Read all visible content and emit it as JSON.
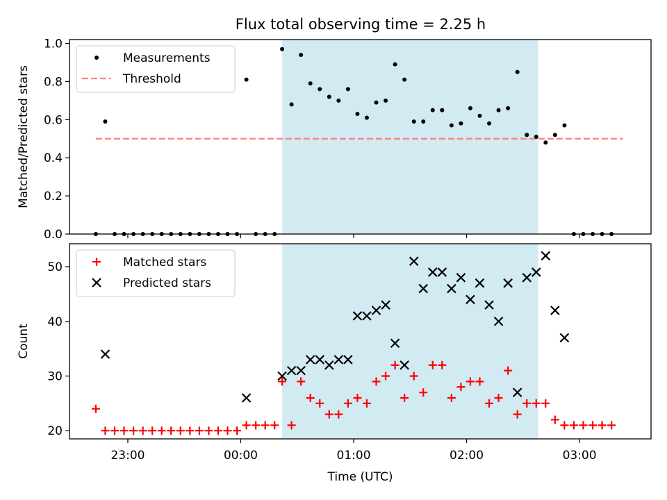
{
  "title": "Flux total observing time = 2.25 h",
  "chart_data": [
    {
      "type": "scatter",
      "panel": "top",
      "title": "Flux total observing time = 2.25 h",
      "xlabel": "",
      "ylabel": "Matched/Predicted stars",
      "xlim": [
        "22:29",
        "03:38"
      ],
      "ylim": [
        0,
        1.02
      ],
      "yticks": [
        0.0,
        0.2,
        0.4,
        0.6,
        0.8,
        1.0
      ],
      "ytick_labels": [
        "0.0",
        "0.2",
        "0.4",
        "0.6",
        "0.8",
        "1.0"
      ],
      "xticks": [
        "23:00",
        "00:00",
        "01:00",
        "02:00",
        "03:00"
      ],
      "shaded_interval": {
        "start": "00:22",
        "end": "02:38",
        "color": "#add8e6"
      },
      "legend": {
        "position": "top-left",
        "entries": [
          "Measurements",
          "Threshold"
        ]
      },
      "threshold": {
        "name": "Threshold",
        "value": 0.5,
        "x_range": [
          "22:43",
          "03:23"
        ],
        "color": "#ff7f7f",
        "style": "dashed"
      },
      "series": [
        {
          "name": "Measurements",
          "color": "#000000",
          "marker": "dot",
          "points": [
            [
              "22:43",
              0
            ],
            [
              "22:48",
              0.59
            ],
            [
              "22:53",
              0
            ],
            [
              "22:58",
              0
            ],
            [
              "23:03",
              0
            ],
            [
              "23:08",
              0
            ],
            [
              "23:13",
              0
            ],
            [
              "23:18",
              0
            ],
            [
              "23:23",
              0
            ],
            [
              "23:28",
              0
            ],
            [
              "23:33",
              0
            ],
            [
              "23:38",
              0
            ],
            [
              "23:43",
              0
            ],
            [
              "23:48",
              0
            ],
            [
              "23:53",
              0
            ],
            [
              "23:58",
              0
            ],
            [
              "00:03",
              0.81
            ],
            [
              "00:08",
              0
            ],
            [
              "00:13",
              0
            ],
            [
              "00:18",
              0
            ],
            [
              "00:22",
              0.97
            ],
            [
              "00:27",
              0.68
            ],
            [
              "00:32",
              0.94
            ],
            [
              "00:37",
              0.79
            ],
            [
              "00:42",
              0.76
            ],
            [
              "00:47",
              0.72
            ],
            [
              "00:52",
              0.7
            ],
            [
              "00:57",
              0.76
            ],
            [
              "01:02",
              0.63
            ],
            [
              "01:07",
              0.61
            ],
            [
              "01:12",
              0.69
            ],
            [
              "01:17",
              0.7
            ],
            [
              "01:22",
              0.89
            ],
            [
              "01:27",
              0.81
            ],
            [
              "01:32",
              0.59
            ],
            [
              "01:37",
              0.59
            ],
            [
              "01:42",
              0.65
            ],
            [
              "01:47",
              0.65
            ],
            [
              "01:52",
              0.57
            ],
            [
              "01:57",
              0.58
            ],
            [
              "02:02",
              0.66
            ],
            [
              "02:07",
              0.62
            ],
            [
              "02:12",
              0.58
            ],
            [
              "02:17",
              0.65
            ],
            [
              "02:22",
              0.66
            ],
            [
              "02:27",
              0.85
            ],
            [
              "02:32",
              0.52
            ],
            [
              "02:37",
              0.51
            ],
            [
              "02:42",
              0.48
            ],
            [
              "02:47",
              0.52
            ],
            [
              "02:52",
              0.57
            ],
            [
              "02:57",
              0
            ],
            [
              "03:02",
              0
            ],
            [
              "03:07",
              0
            ],
            [
              "03:12",
              0
            ],
            [
              "03:17",
              0
            ]
          ]
        }
      ]
    },
    {
      "type": "scatter",
      "panel": "bottom",
      "title": "",
      "xlabel": "Time (UTC)",
      "ylabel": "Count",
      "xlim": [
        "22:29",
        "03:38"
      ],
      "ylim": [
        18.5,
        54.2
      ],
      "yticks": [
        20,
        30,
        40,
        50
      ],
      "ytick_labels": [
        "20",
        "30",
        "40",
        "50"
      ],
      "xticks": [
        "23:00",
        "00:00",
        "01:00",
        "02:00",
        "03:00"
      ],
      "xtick_labels": [
        "23:00",
        "00:00",
        "01:00",
        "02:00",
        "03:00"
      ],
      "shaded_interval": {
        "start": "00:22",
        "end": "02:38",
        "color": "#add8e6"
      },
      "legend": {
        "position": "top-left",
        "entries": [
          "Matched stars",
          "Predicted stars"
        ]
      },
      "series": [
        {
          "name": "Matched stars",
          "color": "#ff0000",
          "marker": "plus",
          "points": [
            [
              "22:43",
              24
            ],
            [
              "22:48",
              20
            ],
            [
              "22:53",
              20
            ],
            [
              "22:58",
              20
            ],
            [
              "23:03",
              20
            ],
            [
              "23:08",
              20
            ],
            [
              "23:13",
              20
            ],
            [
              "23:18",
              20
            ],
            [
              "23:23",
              20
            ],
            [
              "23:28",
              20
            ],
            [
              "23:33",
              20
            ],
            [
              "23:38",
              20
            ],
            [
              "23:43",
              20
            ],
            [
              "23:48",
              20
            ],
            [
              "23:53",
              20
            ],
            [
              "23:58",
              20
            ],
            [
              "00:03",
              21
            ],
            [
              "00:08",
              21
            ],
            [
              "00:13",
              21
            ],
            [
              "00:18",
              21
            ],
            [
              "00:22",
              29
            ],
            [
              "00:27",
              21
            ],
            [
              "00:32",
              29
            ],
            [
              "00:37",
              26
            ],
            [
              "00:42",
              25
            ],
            [
              "00:47",
              23
            ],
            [
              "00:52",
              23
            ],
            [
              "00:57",
              25
            ],
            [
              "01:02",
              26
            ],
            [
              "01:07",
              25
            ],
            [
              "01:12",
              29
            ],
            [
              "01:17",
              30
            ],
            [
              "01:22",
              32
            ],
            [
              "01:27",
              26
            ],
            [
              "01:32",
              30
            ],
            [
              "01:37",
              27
            ],
            [
              "01:42",
              32
            ],
            [
              "01:47",
              32
            ],
            [
              "01:52",
              26
            ],
            [
              "01:57",
              28
            ],
            [
              "02:02",
              29
            ],
            [
              "02:07",
              29
            ],
            [
              "02:12",
              25
            ],
            [
              "02:17",
              26
            ],
            [
              "02:22",
              31
            ],
            [
              "02:27",
              23
            ],
            [
              "02:32",
              25
            ],
            [
              "02:37",
              25
            ],
            [
              "02:42",
              25
            ],
            [
              "02:47",
              22
            ],
            [
              "02:52",
              21
            ],
            [
              "02:57",
              21
            ],
            [
              "03:02",
              21
            ],
            [
              "03:07",
              21
            ],
            [
              "03:12",
              21
            ],
            [
              "03:17",
              21
            ]
          ]
        },
        {
          "name": "Predicted stars",
          "color": "#000000",
          "marker": "x",
          "points": [
            [
              "22:48",
              34
            ],
            [
              "00:03",
              26
            ],
            [
              "00:22",
              30
            ],
            [
              "00:27",
              31
            ],
            [
              "00:32",
              31
            ],
            [
              "00:37",
              33
            ],
            [
              "00:42",
              33
            ],
            [
              "00:47",
              32
            ],
            [
              "00:52",
              33
            ],
            [
              "00:57",
              33
            ],
            [
              "01:02",
              41
            ],
            [
              "01:07",
              41
            ],
            [
              "01:12",
              42
            ],
            [
              "01:17",
              43
            ],
            [
              "01:22",
              36
            ],
            [
              "01:27",
              32
            ],
            [
              "01:32",
              51
            ],
            [
              "01:37",
              46
            ],
            [
              "01:42",
              49
            ],
            [
              "01:47",
              49
            ],
            [
              "01:52",
              46
            ],
            [
              "01:57",
              48
            ],
            [
              "02:02",
              44
            ],
            [
              "02:07",
              47
            ],
            [
              "02:12",
              43
            ],
            [
              "02:17",
              40
            ],
            [
              "02:22",
              47
            ],
            [
              "02:27",
              27
            ],
            [
              "02:32",
              48
            ],
            [
              "02:37",
              49
            ],
            [
              "02:42",
              52
            ],
            [
              "02:47",
              42
            ],
            [
              "02:52",
              37
            ]
          ]
        }
      ]
    }
  ]
}
